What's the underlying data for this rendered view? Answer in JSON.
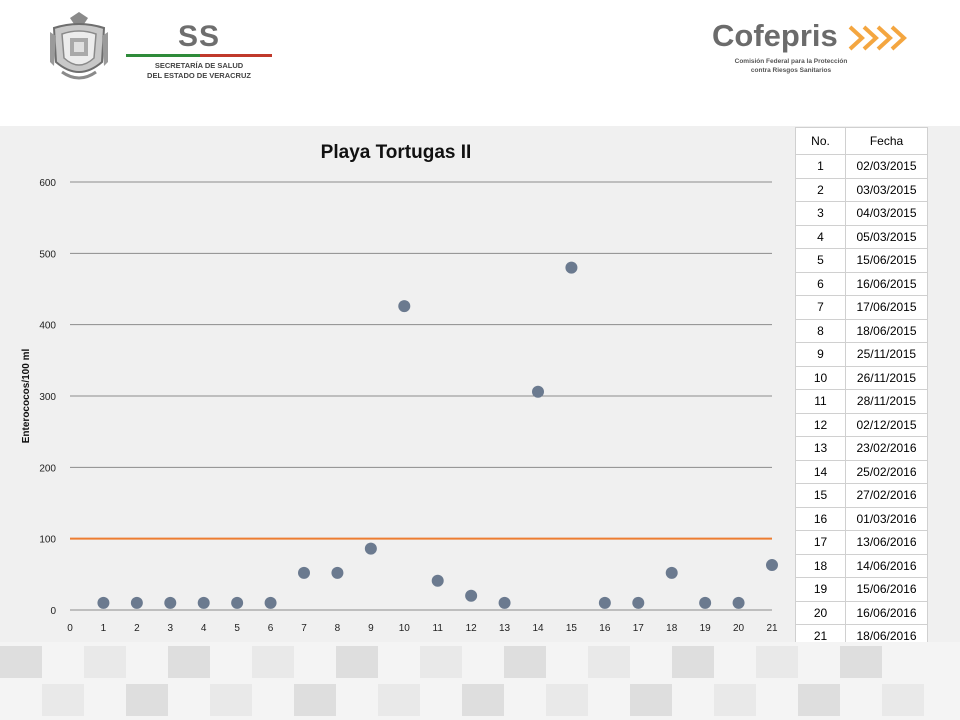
{
  "header": {
    "ss_logo": {
      "letters": "SS",
      "line1": "SECRETARÍA DE SALUD",
      "line2": "DEL ESTADO DE VERACRUZ"
    },
    "cofepris_logo": {
      "name": "Cofepris",
      "line1": "Comisión Federal para la Protección",
      "line2": "contra Riesgos Sanitarios"
    }
  },
  "colors": {
    "points": "#6b7a8f",
    "limit_line": "#ed7d31",
    "gridline": "#8c8c8c",
    "panel": "#f0f0f0",
    "cofepris_orange": "#f4a640"
  },
  "chart_data": {
    "type": "scatter",
    "title": "Playa Tortugas II",
    "xlabel": "",
    "ylabel": "Enterococos/100 ml",
    "xlim": [
      0,
      21
    ],
    "ylim": [
      0,
      600
    ],
    "x_ticks": [
      0,
      1,
      2,
      3,
      4,
      5,
      6,
      7,
      8,
      9,
      10,
      11,
      12,
      13,
      14,
      15,
      16,
      17,
      18,
      19,
      20,
      21
    ],
    "y_ticks": [
      0,
      100,
      200,
      300,
      400,
      500,
      600
    ],
    "grid": true,
    "legend": "none",
    "series": [
      {
        "x": [
          1,
          2,
          3,
          4,
          5,
          6,
          7,
          8,
          9,
          10,
          11,
          12,
          13,
          14,
          15,
          16,
          17,
          18,
          19,
          20,
          21
        ],
        "values": [
          10,
          10,
          10,
          10,
          10,
          10,
          52,
          52,
          86,
          426,
          41,
          20,
          10,
          306,
          480,
          10,
          10,
          52,
          10,
          10,
          63
        ]
      }
    ],
    "limit_line": {
      "y": 100
    }
  },
  "table": {
    "headers": {
      "no": "No.",
      "date": "Fecha"
    },
    "rows": [
      {
        "no": "1",
        "date": "02/03/2015"
      },
      {
        "no": "2",
        "date": "03/03/2015"
      },
      {
        "no": "3",
        "date": "04/03/2015"
      },
      {
        "no": "4",
        "date": "05/03/2015"
      },
      {
        "no": "5",
        "date": "15/06/2015"
      },
      {
        "no": "6",
        "date": "16/06/2015"
      },
      {
        "no": "7",
        "date": "17/06/2015"
      },
      {
        "no": "8",
        "date": "18/06/2015"
      },
      {
        "no": "9",
        "date": "25/11/2015"
      },
      {
        "no": "10",
        "date": "26/11/2015"
      },
      {
        "no": "11",
        "date": "28/11/2015"
      },
      {
        "no": "12",
        "date": "02/12/2015"
      },
      {
        "no": "13",
        "date": "23/02/2016"
      },
      {
        "no": "14",
        "date": "25/02/2016"
      },
      {
        "no": "15",
        "date": "27/02/2016"
      },
      {
        "no": "16",
        "date": "01/03/2016"
      },
      {
        "no": "17",
        "date": "13/06/2016"
      },
      {
        "no": "18",
        "date": "14/06/2016"
      },
      {
        "no": "19",
        "date": "15/06/2016"
      },
      {
        "no": "20",
        "date": "16/06/2016"
      },
      {
        "no": "21",
        "date": "18/06/2016"
      }
    ]
  }
}
